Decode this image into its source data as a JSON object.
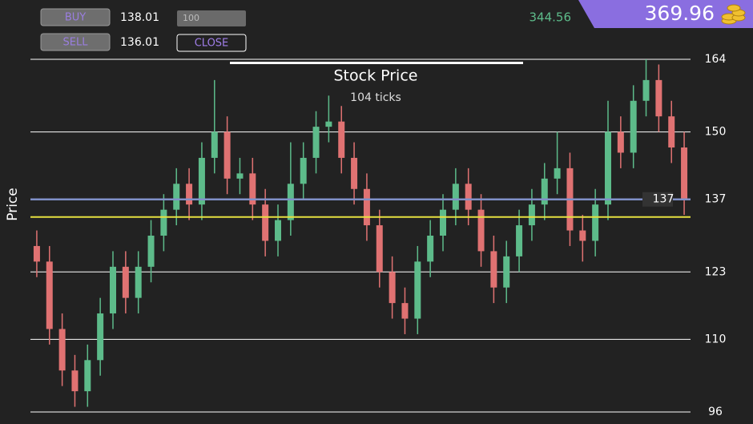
{
  "ui": {
    "buy": "BUY",
    "buy_price": "138.01",
    "quantity": "100",
    "sell": "SELL",
    "sell_price": "136.01",
    "close": "CLOSE",
    "profit": "344.56",
    "balance": "369.96"
  },
  "chart_data": {
    "type": "candlestick",
    "title": "Stock Price",
    "subtitle": "104 ticks",
    "y_label": "Price",
    "open": [
      128,
      125,
      112,
      104,
      100,
      106,
      115,
      124,
      118,
      124,
      130,
      135,
      140,
      136,
      145,
      150,
      141,
      142,
      136,
      129,
      133,
      140,
      145,
      151,
      152,
      145,
      139,
      132,
      123,
      117,
      114,
      125,
      130,
      135,
      140,
      135,
      127,
      120,
      126,
      132,
      136,
      141,
      143,
      131,
      129,
      136,
      150,
      146,
      156,
      160,
      153,
      147
    ],
    "high": [
      131,
      128,
      115,
      107,
      109,
      118,
      127,
      127,
      127,
      133,
      138,
      143,
      143,
      148,
      160,
      153,
      145,
      145,
      139,
      136,
      148,
      148,
      154,
      157,
      155,
      148,
      142,
      135,
      126,
      120,
      128,
      133,
      138,
      143,
      143,
      138,
      130,
      129,
      135,
      139,
      144,
      150,
      146,
      134,
      139,
      156,
      153,
      159,
      164,
      163,
      156,
      150
    ],
    "low": [
      122,
      109,
      101,
      97,
      97,
      103,
      112,
      115,
      115,
      121,
      127,
      132,
      133,
      133,
      142,
      138,
      138,
      133,
      126,
      126,
      130,
      137,
      142,
      148,
      142,
      136,
      129,
      120,
      114,
      111,
      111,
      122,
      127,
      132,
      132,
      124,
      117,
      117,
      123,
      129,
      133,
      138,
      128,
      125,
      126,
      133,
      143,
      143,
      153,
      150,
      144,
      134
    ],
    "close": [
      125,
      112,
      104,
      100,
      106,
      115,
      124,
      118,
      124,
      130,
      135,
      140,
      136,
      145,
      150,
      141,
      142,
      136,
      129,
      133,
      140,
      145,
      151,
      152,
      145,
      139,
      132,
      123,
      117,
      114,
      125,
      130,
      135,
      140,
      135,
      127,
      120,
      126,
      132,
      136,
      141,
      143,
      131,
      129,
      136,
      150,
      146,
      156,
      160,
      153,
      147,
      137
    ],
    "up_color": "#5dbb8a",
    "down_color": "#e07272",
    "current_price": 137,
    "current_color": "#8090c8",
    "entry_price": 133.6,
    "entry_color": "#e6e040",
    "ylim": [
      96,
      164
    ],
    "yticks": [
      164,
      150,
      137,
      123,
      110,
      96
    ],
    "grid": true
  }
}
